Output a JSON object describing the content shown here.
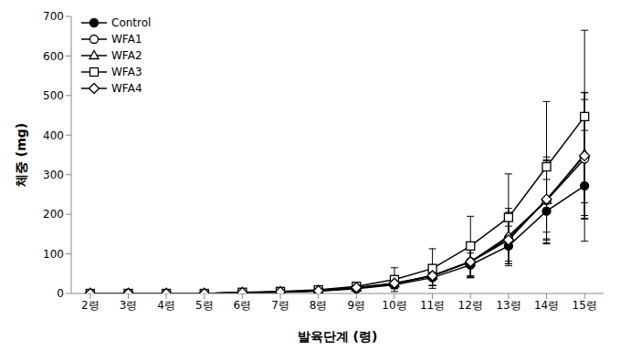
{
  "chart_data": {
    "type": "line",
    "x_label": "발육단계 (령)",
    "y_label": "체중 (mg)",
    "categories": [
      "2령",
      "3령",
      "4령",
      "5령",
      "6령",
      "7령",
      "8령",
      "9령",
      "10령",
      "11령",
      "12령",
      "13령",
      "14령",
      "15령"
    ],
    "ylim": [
      0,
      700
    ],
    "yticks": [
      0,
      100,
      200,
      300,
      400,
      500,
      600,
      700
    ],
    "grid": false,
    "legend": "upper left",
    "series": [
      {
        "name": "Control",
        "color": "#000000",
        "marker": "circle",
        "values": [
          0,
          0,
          0,
          0,
          2,
          3,
          6,
          12,
          22,
          40,
          72,
          120,
          208,
          272
        ],
        "errors": [
          0,
          0,
          0,
          0,
          1,
          2,
          3,
          5,
          10,
          20,
          30,
          50,
          80,
          140
        ]
      },
      {
        "name": "WFA1",
        "color": "#000000",
        "marker": "open_circle",
        "values": [
          0,
          0,
          0,
          0,
          2,
          4,
          7,
          14,
          25,
          45,
          80,
          140,
          235,
          340
        ],
        "errors": [
          0,
          0,
          0,
          0,
          1,
          2,
          3,
          5,
          12,
          25,
          40,
          65,
          100,
          150
        ]
      },
      {
        "name": "WFA2",
        "color": "#000000",
        "marker": "open_triangle",
        "values": [
          0,
          0,
          0,
          0,
          2,
          4,
          7,
          14,
          25,
          45,
          80,
          145,
          235,
          352
        ],
        "errors": [
          0,
          0,
          0,
          0,
          1,
          2,
          3,
          5,
          12,
          25,
          40,
          70,
          110,
          155
        ]
      },
      {
        "name": "WFA3",
        "color": "#000000",
        "marker": "open_square",
        "values": [
          0,
          0,
          0,
          0,
          3,
          5,
          9,
          18,
          35,
          63,
          120,
          192,
          320,
          447
        ],
        "errors": [
          0,
          0,
          0,
          0,
          1,
          2,
          4,
          8,
          30,
          50,
          75,
          110,
          165,
          218
        ]
      },
      {
        "name": "WFA4",
        "color": "#000000",
        "marker": "open_diamond",
        "values": [
          0,
          0,
          0,
          0,
          2,
          4,
          7,
          15,
          26,
          45,
          80,
          135,
          238,
          348
        ],
        "errors": [
          0,
          0,
          0,
          0,
          1,
          2,
          3,
          5,
          12,
          25,
          40,
          60,
          100,
          160
        ]
      }
    ]
  }
}
